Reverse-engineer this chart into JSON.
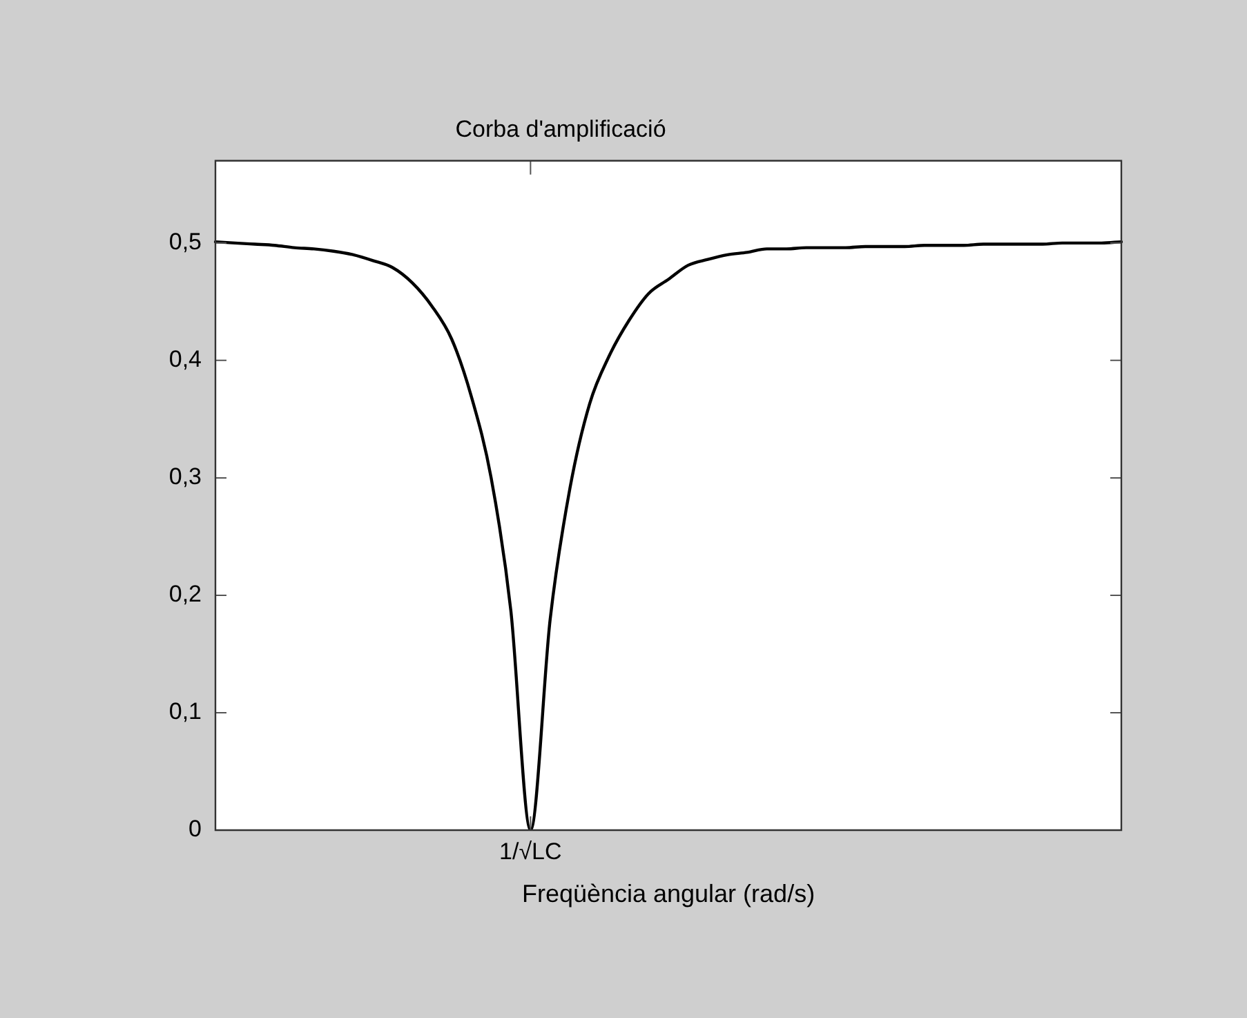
{
  "chart_data": {
    "type": "line",
    "title": "Corba d'amplificació",
    "xlabel": "Freqüència angular (rad/s)",
    "grid": false,
    "legend": false,
    "marker": "none",
    "line_style": "solid",
    "categories": [
      null,
      null,
      null,
      null,
      null,
      null,
      null,
      null,
      null,
      null,
      null,
      null,
      null,
      null,
      null,
      null,
      "1/√LC",
      null,
      null,
      null,
      null,
      null,
      null,
      null,
      null,
      null,
      null,
      null,
      null,
      null,
      null,
      null,
      null,
      null,
      null,
      null,
      null,
      null,
      null,
      null,
      null,
      null,
      null,
      null,
      null,
      null,
      null
    ],
    "series": [
      {
        "color": "#000000",
        "values": [
          0.501,
          0.5,
          0.499,
          0.498,
          0.496,
          0.495,
          0.493,
          0.49,
          0.485,
          0.479,
          0.466,
          0.446,
          0.418,
          0.369,
          0.3,
          0.187,
          0,
          0.18,
          0.291,
          0.363,
          0.404,
          0.434,
          0.457,
          0.469,
          0.481,
          0.486,
          0.49,
          0.492,
          0.495,
          0.495,
          0.496,
          0.496,
          0.496,
          0.497,
          0.497,
          0.497,
          0.498,
          0.498,
          0.498,
          0.499,
          0.499,
          0.499,
          0.499,
          0.5,
          0.5,
          0.5,
          0.501
        ]
      }
    ],
    "ylim": [
      0,
      0.57
    ],
    "yticks": [
      {
        "value": 0,
        "label": "0"
      },
      {
        "value": 0.1,
        "label": "0,1"
      },
      {
        "value": 0.2,
        "label": "0,2"
      },
      {
        "value": 0.3,
        "label": "0,3"
      },
      {
        "value": 0.4,
        "label": "0,4"
      },
      {
        "value": 0.5,
        "label": "0,5"
      }
    ]
  }
}
